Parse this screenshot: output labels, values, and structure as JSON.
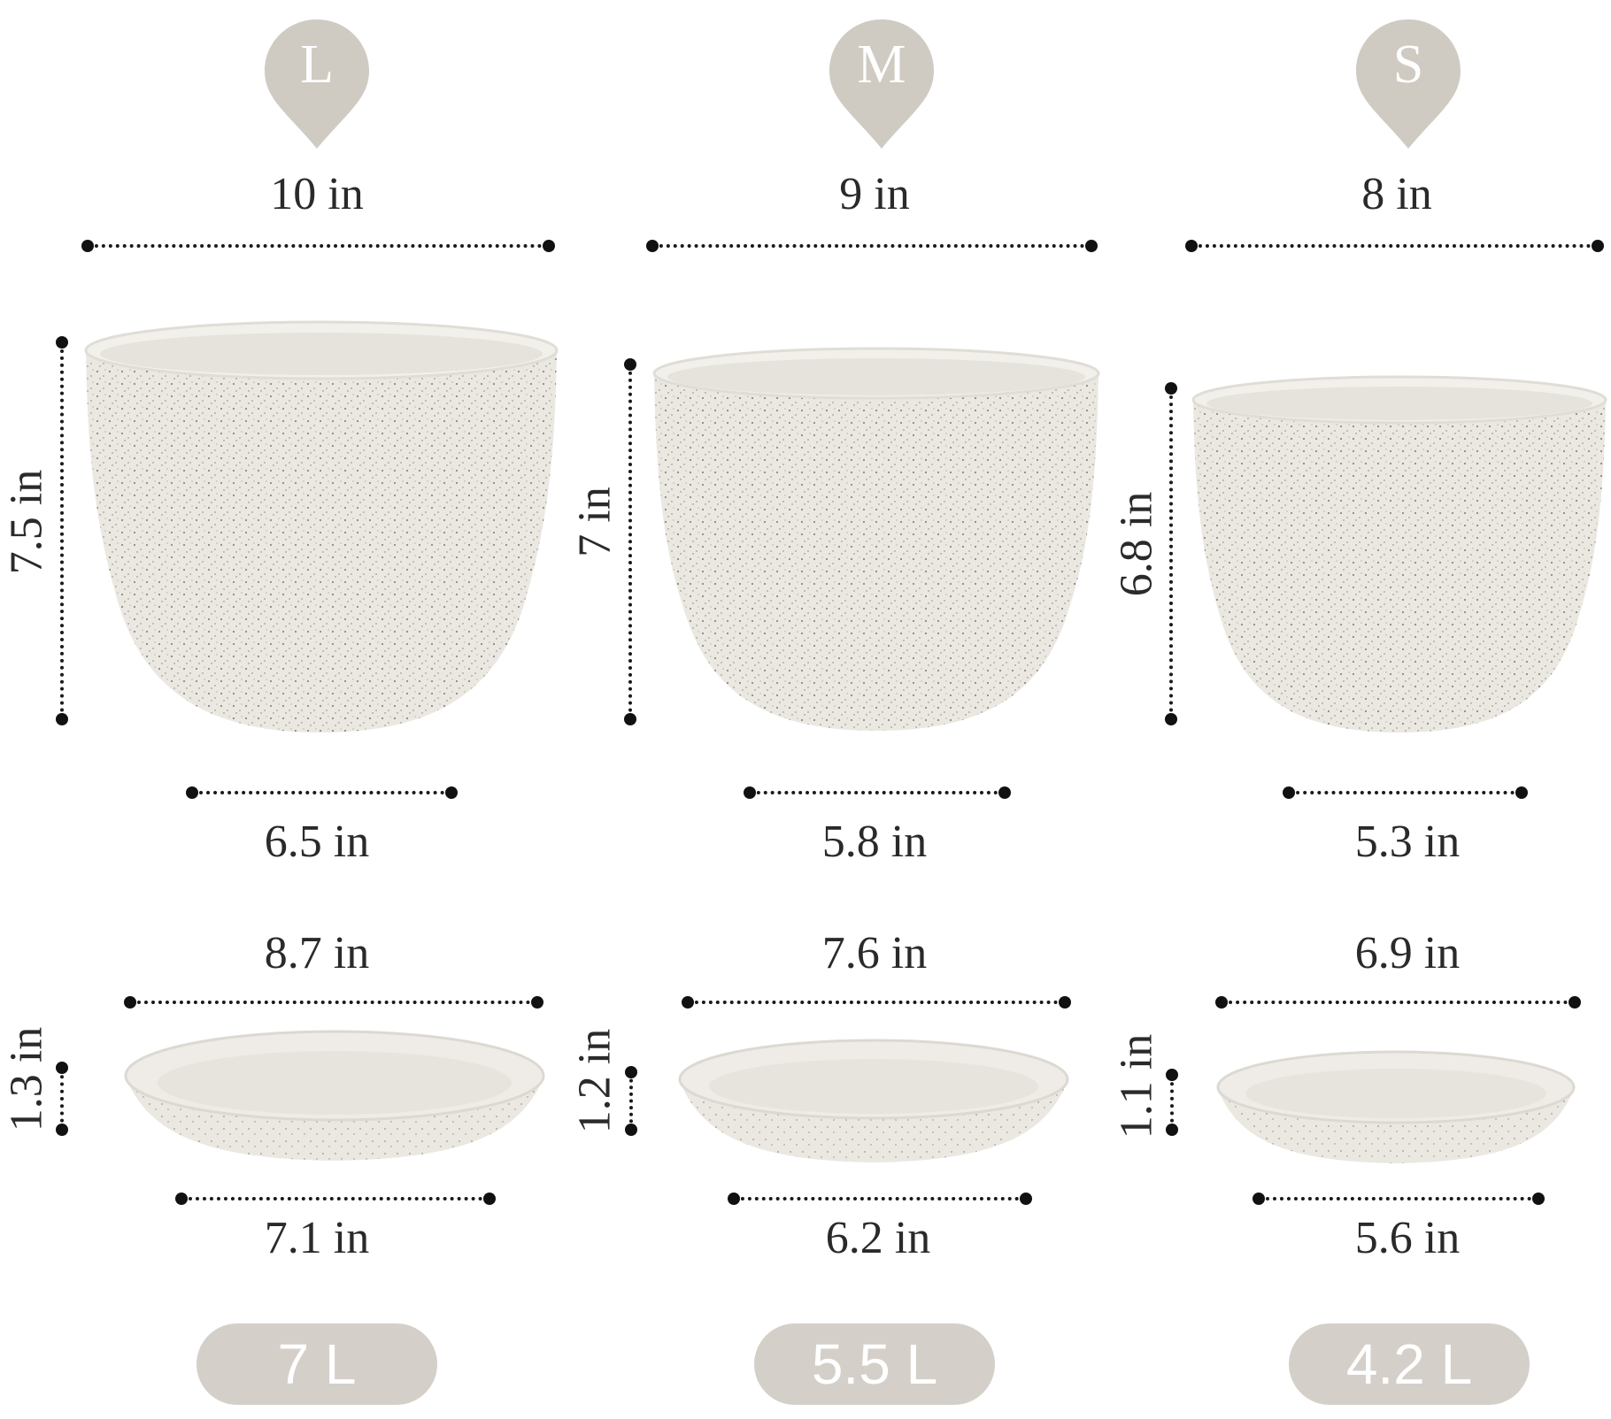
{
  "colors": {
    "badge_fill": "#cfcbc3",
    "pill_fill": "#d4d0c9",
    "pot_color": "#ece9e3",
    "speckle_color": "#8c8a86",
    "line_color": "#1a1a1a"
  },
  "sizes": [
    {
      "size_letter": "L",
      "top_width": "10 in",
      "height": "7.5 in",
      "bottom_width": "6.5 in",
      "saucer_top_width": "8.7 in",
      "saucer_height": "1.3 in",
      "saucer_bottom_width": "7.1 in",
      "volume": "7 L"
    },
    {
      "size_letter": "M",
      "top_width": "9 in",
      "height": "7 in",
      "bottom_width": "5.8 in",
      "saucer_top_width": "7.6 in",
      "saucer_height": "1.2 in",
      "saucer_bottom_width": "6.2 in",
      "volume": "5.5 L"
    },
    {
      "size_letter": "S",
      "top_width": "8 in",
      "height": "6.8 in",
      "bottom_width": "5.3 in",
      "saucer_top_width": "6.9 in",
      "saucer_height": "1.1 in",
      "saucer_bottom_width": "5.6 in",
      "volume": "4.2 L"
    }
  ]
}
